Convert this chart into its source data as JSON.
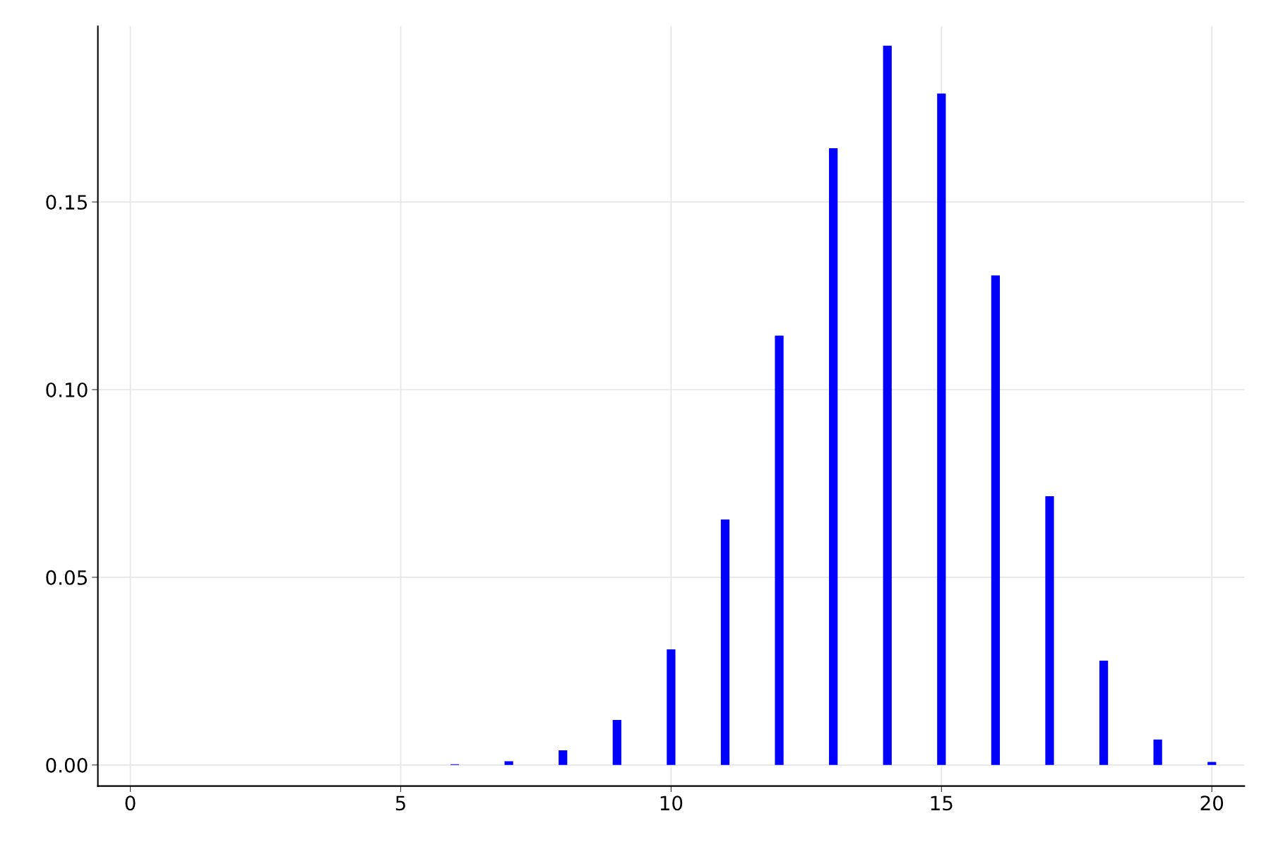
{
  "chart_data": {
    "type": "bar",
    "x": [
      0,
      1,
      2,
      3,
      4,
      5,
      6,
      7,
      8,
      9,
      10,
      11,
      12,
      13,
      14,
      15,
      16,
      17,
      18,
      19,
      20
    ],
    "values": [
      0,
      0,
      0,
      0,
      0,
      0,
      0.0002,
      0.001,
      0.0039,
      0.012,
      0.0308,
      0.0654,
      0.1144,
      0.1643,
      0.1916,
      0.1789,
      0.1304,
      0.0716,
      0.0278,
      0.0068,
      0.0008
    ],
    "color": "#0000ff",
    "xlim": [
      -0.6,
      20.6
    ],
    "ylim": [
      -0.0056,
      0.1968
    ],
    "xticks": [
      0,
      5,
      10,
      15,
      20
    ],
    "yticks": [
      {
        "value": 0,
        "label": "0.00"
      },
      {
        "value": 0.05,
        "label": "0.05"
      },
      {
        "value": 0.1,
        "label": "0.10"
      },
      {
        "value": 0.15,
        "label": "0.15"
      }
    ],
    "grid": true
  }
}
